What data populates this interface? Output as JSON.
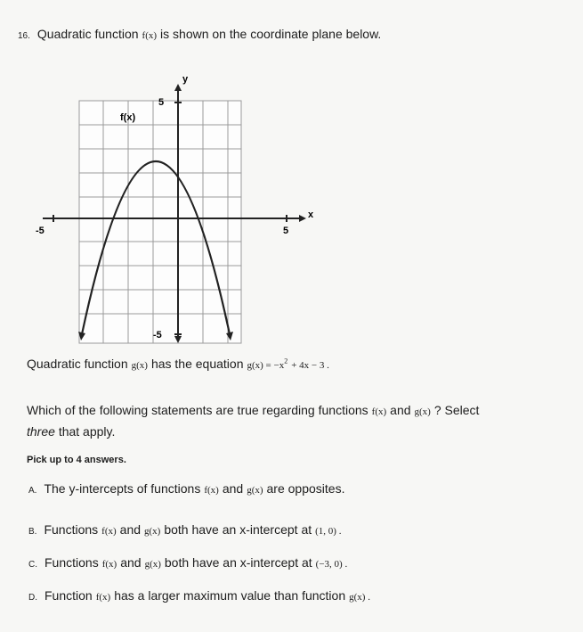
{
  "question": {
    "number": "16.",
    "intro": [
      "Quadratic function",
      "f(x)",
      "is shown on the coordinate plane below."
    ],
    "equation_line": [
      "Quadratic function",
      "g(x)",
      "has the equation",
      "g(x) = −x",
      "2",
      "+ 4x − 3 ."
    ],
    "prompt": [
      "Which of the following statements are true regarding functions",
      "f(x)",
      "and",
      "g(x)",
      "? Select"
    ],
    "prompt_line2": [
      "three",
      "that apply."
    ],
    "instruction": "Pick up to 4 answers."
  },
  "graph": {
    "x_axis_label": "x",
    "y_axis_label": "y",
    "curve_label": "f(x)",
    "x_tick_labels": [
      "-5",
      "5"
    ],
    "y_tick_labels": [
      "5",
      "-5"
    ]
  },
  "options": [
    {
      "letter": "A.",
      "parts": [
        "The y-intercepts of functions",
        "f(x)",
        "and",
        "g(x)",
        "are opposites."
      ]
    },
    {
      "letter": "B.",
      "parts": [
        "Functions",
        "f(x)",
        "and",
        "g(x)",
        "both have an x-intercept at",
        "(1, 0) ."
      ]
    },
    {
      "letter": "C.",
      "parts": [
        "Functions",
        "f(x)",
        "and",
        "g(x)",
        "both have an x-intercept at",
        "(−3, 0) ."
      ]
    },
    {
      "letter": "D.",
      "parts": [
        "Function",
        "f(x)",
        "has a larger maximum value than function",
        "g(x) ."
      ]
    }
  ]
}
